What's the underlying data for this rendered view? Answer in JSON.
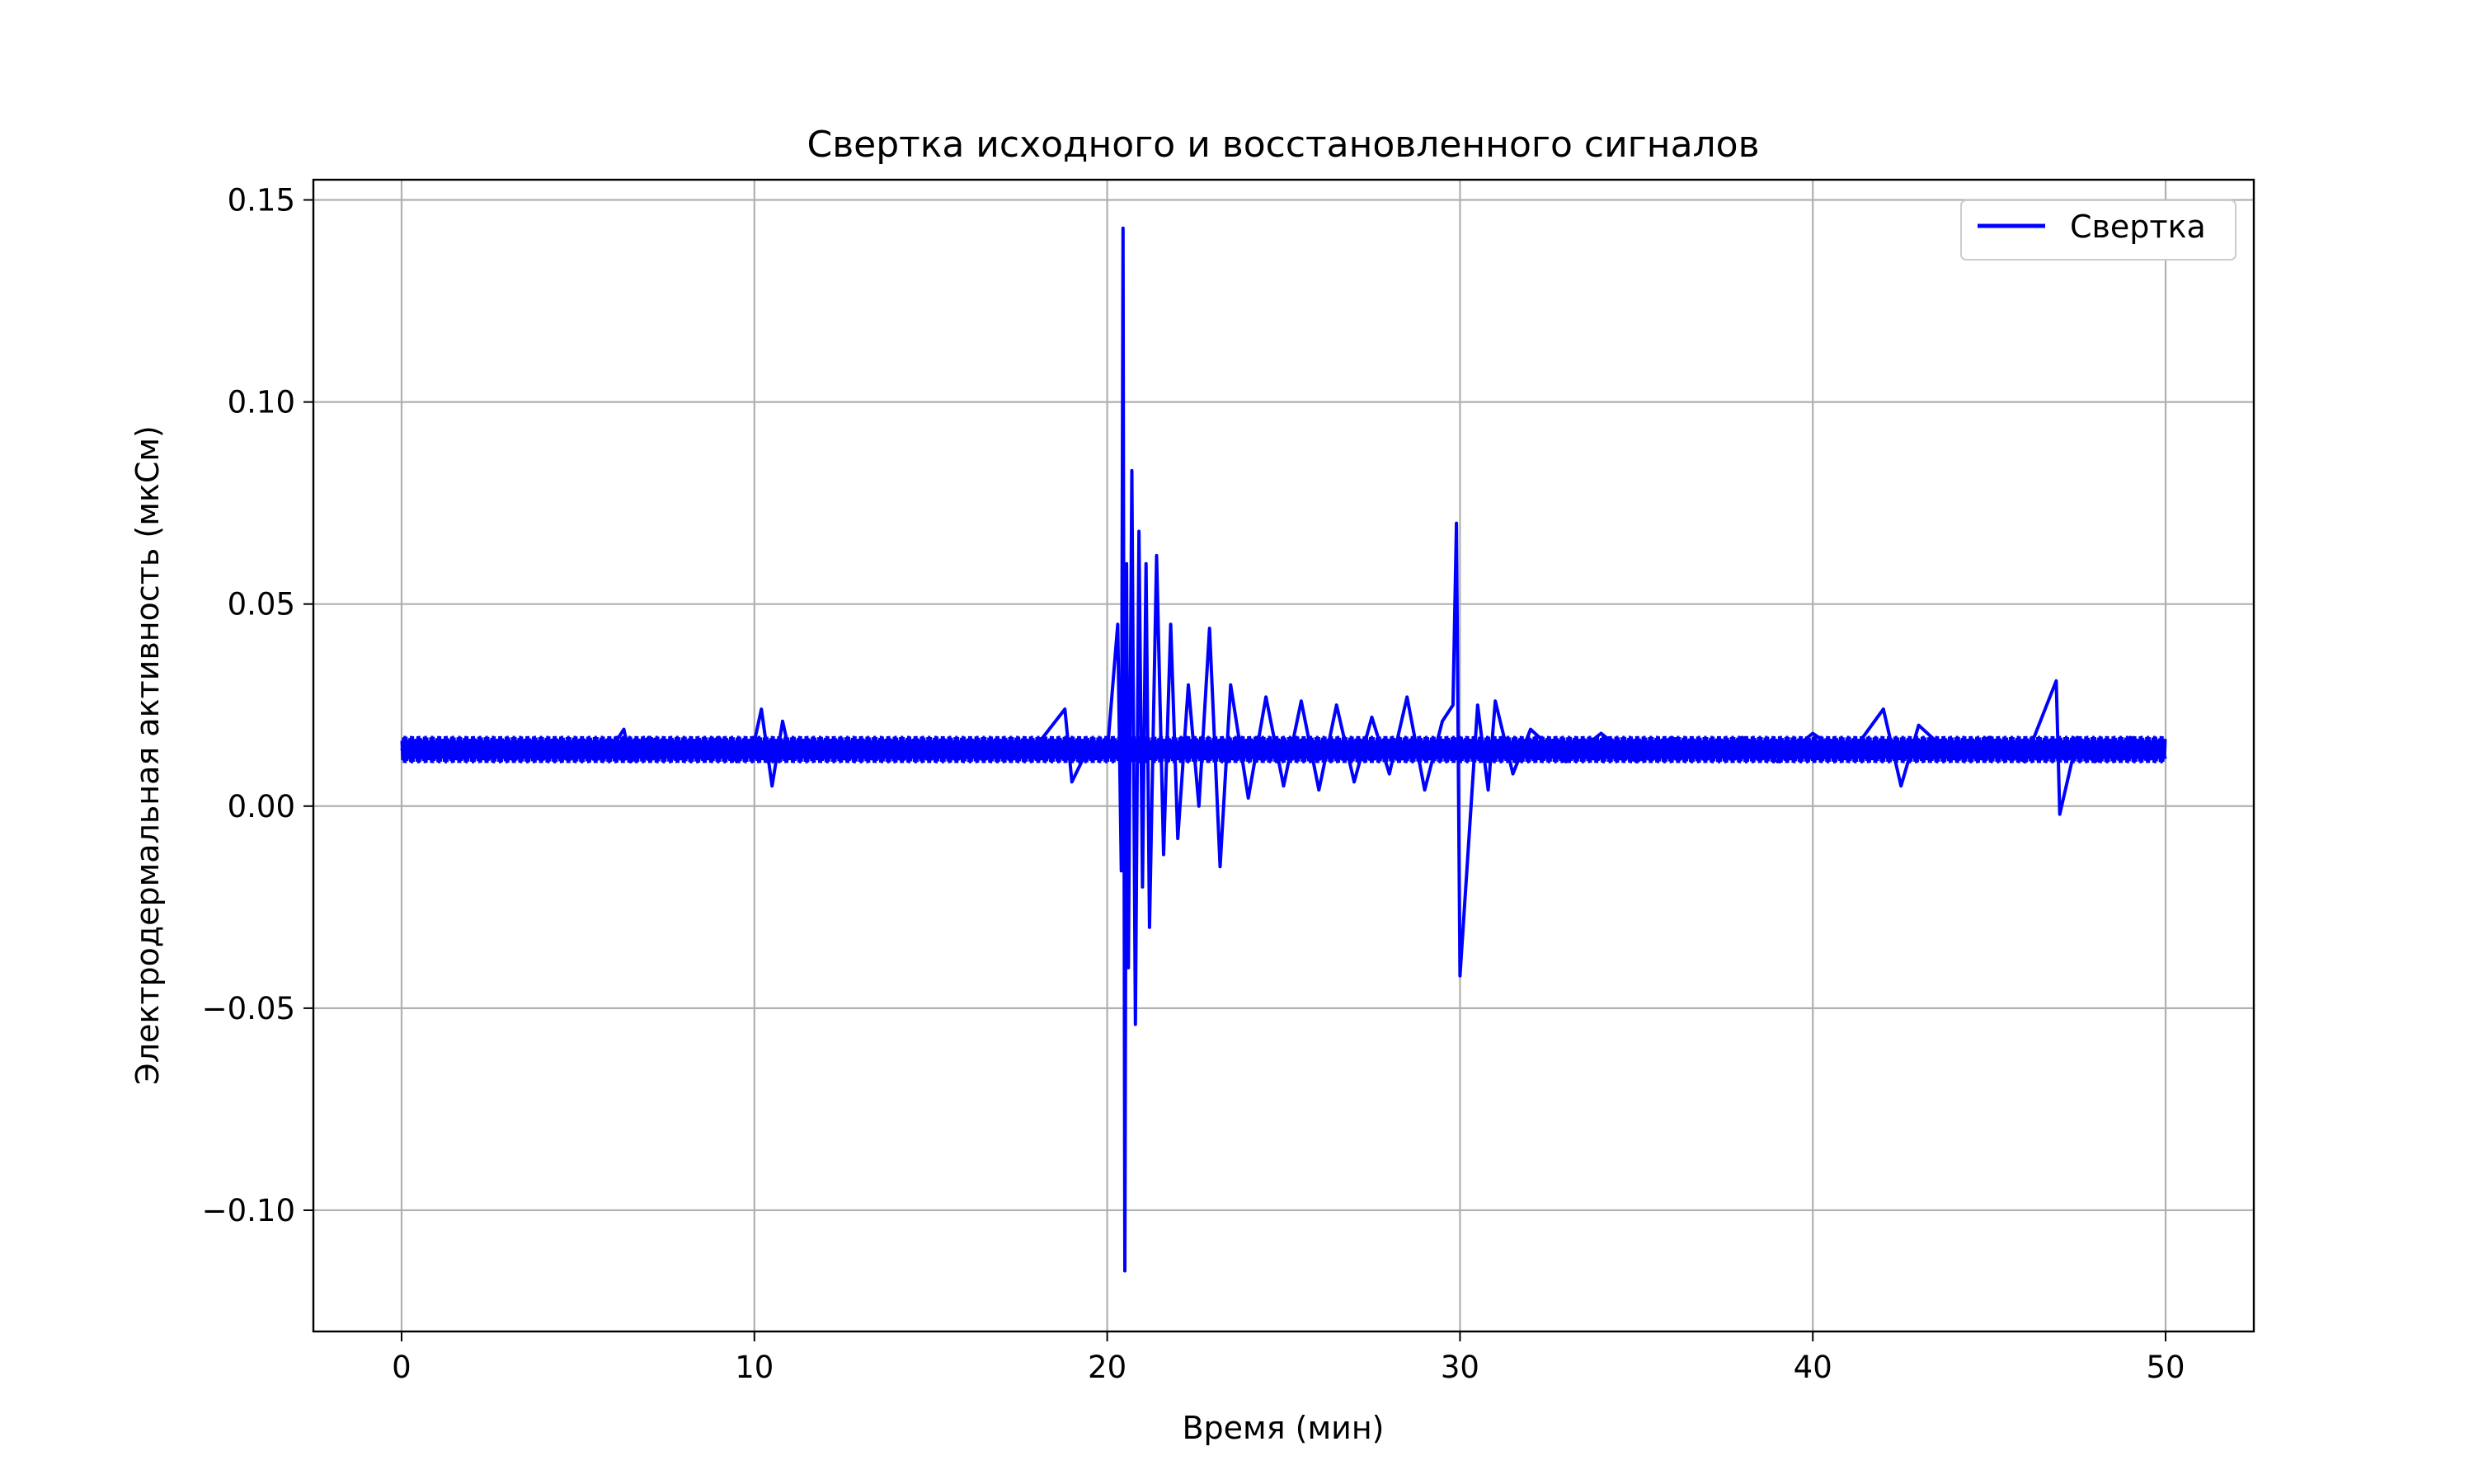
{
  "chart_data": {
    "type": "line",
    "title": "Свертка исходного и восстановленного сигналов",
    "xlabel": "Время (мин)",
    "ylabel": "Электродермальная активность (мкСм)",
    "xlim": [
      -2.5,
      52.5
    ],
    "ylim": [
      -0.13,
      0.155
    ],
    "xticks": [
      0,
      10,
      20,
      30,
      40,
      50
    ],
    "xtick_labels": [
      "0",
      "10",
      "20",
      "30",
      "40",
      "50"
    ],
    "yticks": [
      -0.1,
      -0.05,
      0.0,
      0.05,
      0.1,
      0.15
    ],
    "ytick_labels": [
      "−0.10",
      "−0.05",
      "0.00",
      "0.05",
      "0.10",
      "0.15"
    ],
    "grid": true,
    "legend": {
      "position": "top-right",
      "entries": [
        "Свертка"
      ]
    },
    "series": [
      {
        "name": "Свертка",
        "color": "#0000ff",
        "baseline": 0.014,
        "x": [
          0,
          0.5,
          1,
          2,
          3,
          4,
          5,
          6,
          6.3,
          6.5,
          7,
          8,
          9,
          9.5,
          10,
          10.2,
          10.5,
          10.8,
          11,
          12,
          13,
          14,
          15,
          16,
          17,
          18,
          18.8,
          19,
          19.5,
          20,
          20.3,
          20.4,
          20.45,
          20.5,
          20.55,
          20.6,
          20.7,
          20.8,
          20.9,
          21.0,
          21.1,
          21.2,
          21.4,
          21.6,
          21.8,
          22,
          22.3,
          22.6,
          22.9,
          23.2,
          23.5,
          24,
          24.5,
          25,
          25.5,
          26,
          26.5,
          27,
          27.5,
          28,
          28.5,
          29,
          29.5,
          29.8,
          29.9,
          30,
          30.5,
          30.8,
          31,
          31.5,
          32,
          33,
          34,
          35,
          36,
          37,
          38,
          39,
          40,
          41,
          42,
          42.5,
          43,
          44,
          45,
          46,
          46.9,
          47,
          47.5,
          48,
          49,
          50
        ],
        "y": [
          0.014,
          0.016,
          0.012,
          0.015,
          0.013,
          0.016,
          0.012,
          0.015,
          0.019,
          0.011,
          0.017,
          0.012,
          0.017,
          0.011,
          0.016,
          0.024,
          0.005,
          0.021,
          0.013,
          0.016,
          0.012,
          0.015,
          0.013,
          0.016,
          0.012,
          0.015,
          0.024,
          0.006,
          0.015,
          0.013,
          0.045,
          -0.016,
          0.143,
          -0.115,
          0.06,
          -0.04,
          0.083,
          -0.054,
          0.068,
          -0.02,
          0.06,
          -0.03,
          0.062,
          -0.012,
          0.045,
          -0.008,
          0.03,
          0.0,
          0.044,
          -0.015,
          0.03,
          0.002,
          0.027,
          0.005,
          0.026,
          0.004,
          0.025,
          0.006,
          0.022,
          0.008,
          0.027,
          0.004,
          0.021,
          0.025,
          0.07,
          -0.042,
          0.025,
          0.004,
          0.026,
          0.008,
          0.019,
          0.011,
          0.018,
          0.011,
          0.017,
          0.012,
          0.017,
          0.011,
          0.018,
          0.012,
          0.024,
          0.005,
          0.02,
          0.012,
          0.017,
          0.011,
          0.031,
          -0.002,
          0.017,
          0.011,
          0.017,
          0.012
        ]
      }
    ]
  }
}
